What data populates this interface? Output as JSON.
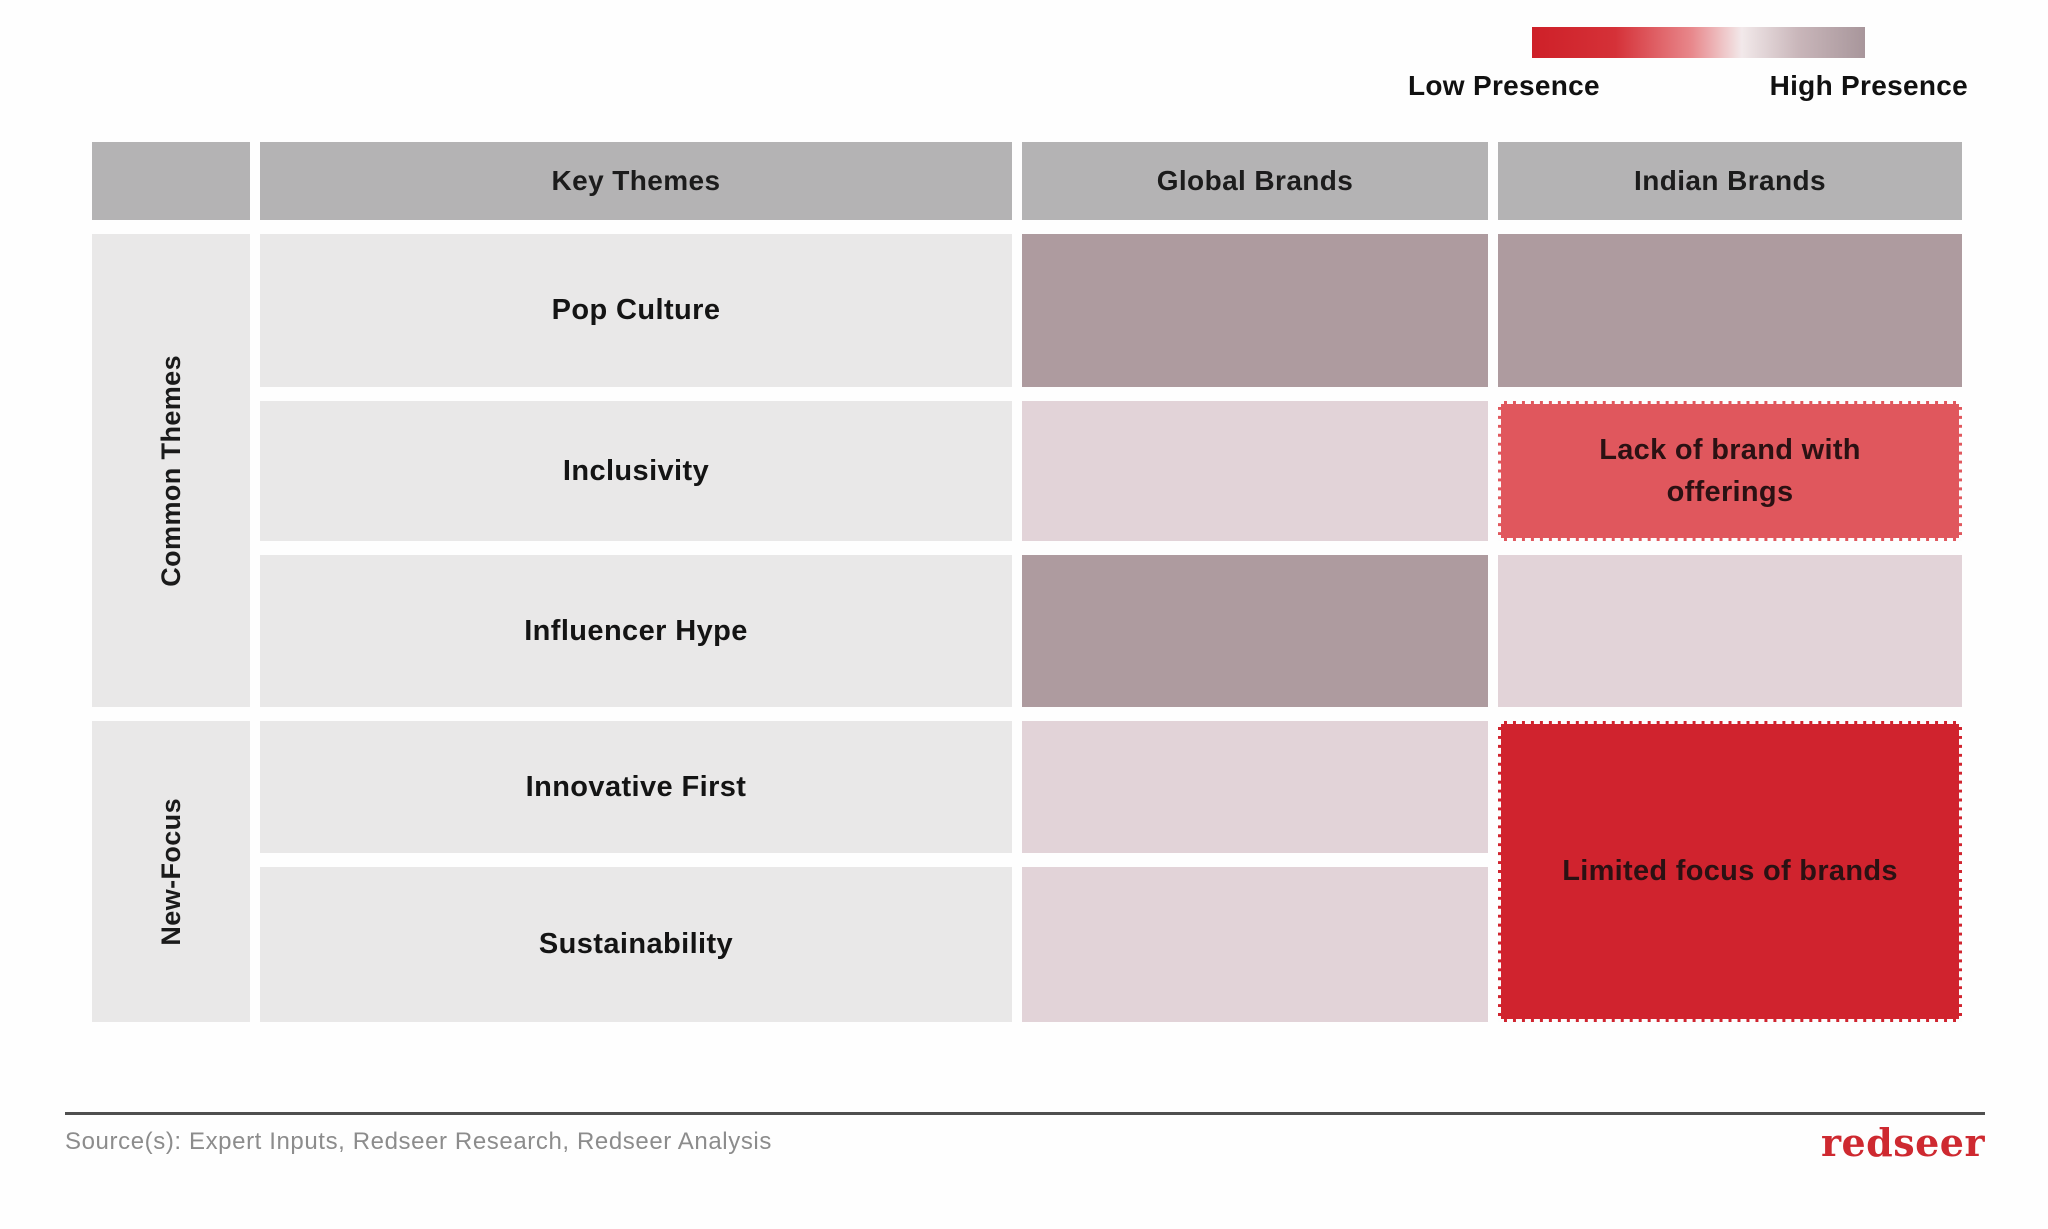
{
  "legend": {
    "low_label": "Low Presence",
    "high_label": "High Presence",
    "gradient_css": "linear-gradient(90deg, #ce2028 0%, #d4303sev 0%, #d53138 25%, #e8888c 48%, #f2e9ea 63%, #c9b6ba 80%, #a8969b 100%)",
    "gradient_safe": "linear-gradient(90deg, #ce2028 0%, #d53138 25%, #e8888c 48%, #f2e9ea 63%, #c9b6ba 80%, #a8969b 100%)",
    "color_low": "#ce2028",
    "color_high": "#a8969b"
  },
  "table": {
    "header": {
      "themes": "Key Themes",
      "global": "Global Brands",
      "indian": "Indian Brands"
    },
    "groups": {
      "common": "Common Themes",
      "new_focus": "New-Focus"
    },
    "themes": [
      "Pop Culture",
      "Inclusivity",
      "Influencer Hype",
      "Innovative First",
      "Sustainability"
    ],
    "notes": {
      "inclusivity_indian": "Lack of brand with offerings",
      "new_focus_indian": "Limited focus of brands"
    },
    "colors": {
      "header_bg": "#b4b3b4",
      "label_bg": "#e9e8e8",
      "theme_bg": "#e9e8e8"
    },
    "cells": {
      "pop_global": "#ae9b9f",
      "pop_indian": "#ae9b9f",
      "inclusivity_global": "#e2d3d8",
      "inclusivity_indian": "#e0575d",
      "influencer_global": "#ae9b9f",
      "influencer_indian": "#e2d3d8",
      "innovative_global": "#e2d3d8",
      "sustainability_global": "#e2d3d8",
      "new_focus_indian": "#d0232e"
    }
  },
  "footer": {
    "source": "Source(s): Expert Inputs, Redseer Research, Redseer Analysis",
    "logo_text": "redseer"
  },
  "chart_data": {
    "type": "heatmap",
    "title": "",
    "columns": [
      "Global Brands",
      "Indian Brands"
    ],
    "row_groups": [
      {
        "group": "Common Themes",
        "rows": [
          "Pop Culture",
          "Inclusivity",
          "Influencer Hype"
        ]
      },
      {
        "group": "New-Focus",
        "rows": [
          "Innovative First",
          "Sustainability"
        ]
      }
    ],
    "scale": {
      "label_low": "Low Presence",
      "label_high": "High Presence",
      "color_low": "#ce2028",
      "color_high": "#a8969b",
      "meaning": "red = low presence, grey-mauve = high presence"
    },
    "cells": [
      {
        "row": "Pop Culture",
        "column": "Global Brands",
        "presence": "high",
        "color": "#ae9b9f"
      },
      {
        "row": "Pop Culture",
        "column": "Indian Brands",
        "presence": "high",
        "color": "#ae9b9f"
      },
      {
        "row": "Inclusivity",
        "column": "Global Brands",
        "presence": "medium-high",
        "color": "#e2d3d8"
      },
      {
        "row": "Inclusivity",
        "column": "Indian Brands",
        "presence": "low",
        "color": "#e0575d",
        "annotation": "Lack of brand with offerings"
      },
      {
        "row": "Influencer Hype",
        "column": "Global Brands",
        "presence": "high",
        "color": "#ae9b9f"
      },
      {
        "row": "Influencer Hype",
        "column": "Indian Brands",
        "presence": "medium-high",
        "color": "#e2d3d8"
      },
      {
        "row": "Innovative First",
        "column": "Global Brands",
        "presence": "medium-high",
        "color": "#e2d3d8"
      },
      {
        "row": "Sustainability",
        "column": "Global Brands",
        "presence": "medium-high",
        "color": "#e2d3d8"
      },
      {
        "row": "Innovative First + Sustainability",
        "column": "Indian Brands",
        "presence": "very-low",
        "color": "#d0232e",
        "annotation": "Limited focus of brands",
        "merged_rows": true
      }
    ]
  }
}
